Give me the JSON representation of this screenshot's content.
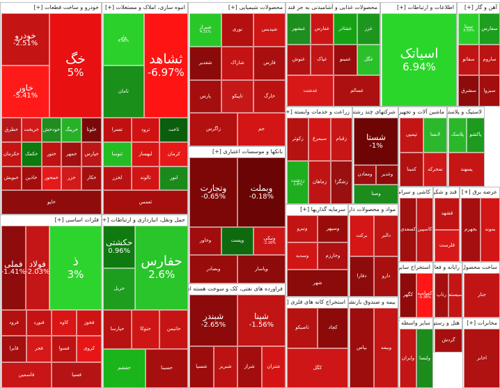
{
  "colors": {
    "up_strong": "#22cc22",
    "up_medium": "#11a011",
    "up_dark": "#0b6b0b",
    "down_strong": "#ff0000",
    "down_medium": "#d11616",
    "down_dark": "#7a0000",
    "neutral_dark": "#5a0000"
  },
  "sectors": [
    {
      "id": "s1",
      "title": "خودرو و ساخت قطعات [+]",
      "cells": [
        {
          "sym": "خگ",
          "chg": "5%",
          "c": "#e81010",
          "sz": "big"
        },
        {
          "sym": "خودرو",
          "chg": "-2.51%",
          "c": "#c51414",
          "sz": "med"
        },
        {
          "sym": "خاور",
          "chg": "-5.41%",
          "c": "#ff1a1a",
          "sz": "med"
        },
        {
          "sym": "خلوتا",
          "chg": "",
          "c": "#7a0a0a",
          "sz": "sml"
        },
        {
          "sym": "خرینگ",
          "chg": "",
          "c": "#27b127",
          "sz": "sml"
        },
        {
          "sym": "خودخش",
          "chg": "",
          "c": "#1f8e1f",
          "sz": "sml"
        },
        {
          "sym": "خریخت",
          "chg": "",
          "c": "#d21a1a",
          "sz": "sml"
        },
        {
          "sym": "خطرق",
          "chg": "",
          "c": "#b51818",
          "sz": "sml"
        },
        {
          "sym": "خپارس",
          "chg": "",
          "c": "#bd1616",
          "sz": "sml"
        },
        {
          "sym": "خمهر",
          "chg": "",
          "c": "#a21010",
          "sz": "sml"
        },
        {
          "sym": "ختور",
          "chg": "",
          "c": "#c01212",
          "sz": "sml"
        },
        {
          "sym": "خکمک",
          "chg": "",
          "c": "#0d7a0d",
          "sz": "sml"
        },
        {
          "sym": "خکرمان",
          "chg": "",
          "c": "#c41414",
          "sz": "sml"
        },
        {
          "sym": "خکار",
          "chg": "",
          "c": "#a40f0f",
          "sz": "sml"
        },
        {
          "sym": "خزر",
          "chg": "",
          "c": "#d11a1a",
          "sz": "sml"
        },
        {
          "sym": "خمحور",
          "chg": "",
          "c": "#e51919",
          "sz": "sml"
        },
        {
          "sym": "خاذین",
          "chg": "",
          "c": "#a30d0d",
          "sz": "sml"
        },
        {
          "sym": "خبویش",
          "chg": "",
          "c": "#b51212",
          "sz": "sml"
        },
        {
          "sym": "خاپو",
          "chg": "",
          "c": "#8f0c0c",
          "sz": "sml"
        }
      ]
    },
    {
      "id": "s2",
      "title": "فلزات اساسی [+]",
      "cells": [
        {
          "sym": "ذ",
          "chg": "3%",
          "c": "#2ed42e",
          "sz": "big"
        },
        {
          "sym": "فولاد",
          "chg": "-2.03%",
          "c": "#c41616",
          "sz": "med"
        },
        {
          "sym": "فملی",
          "chg": "-1.41%",
          "c": "#8f0c0c",
          "sz": "med"
        },
        {
          "sym": "فخوز",
          "chg": "",
          "c": "#cf1212",
          "sz": "sml"
        },
        {
          "sym": "کاوه",
          "chg": "",
          "c": "#d91515",
          "sz": "sml"
        },
        {
          "sym": "فنورد",
          "chg": "",
          "c": "#c51212",
          "sz": "sml"
        },
        {
          "sym": "فرود",
          "chg": "",
          "c": "#b31010",
          "sz": "sml"
        },
        {
          "sym": "کروی",
          "chg": "",
          "c": "#e71616",
          "sz": "sml"
        },
        {
          "sym": "فسوا",
          "chg": "",
          "c": "#bf1313",
          "sz": "sml"
        },
        {
          "sym": "فجر",
          "chg": "",
          "c": "#d61818",
          "sz": "sml"
        },
        {
          "sym": "فایرا",
          "chg": "",
          "c": "#a50f0f",
          "sz": "sml"
        },
        {
          "sym": "فسپا",
          "chg": "",
          "c": "#b61414",
          "sz": "sml"
        },
        {
          "sym": "فاسمین",
          "chg": "",
          "c": "#c81515",
          "sz": "sml"
        }
      ]
    },
    {
      "id": "s3",
      "title": "انبوه سازی، املاک و مستغلات [+]",
      "cells": [
        {
          "sym": "ثشاهد",
          "chg": "-6.97%",
          "c": "#ff1414",
          "sz": "big"
        },
        {
          "sym": "وثر",
          "chg": "4.98%",
          "c": "#2bd02b",
          "sz": "sml"
        },
        {
          "sym": "ثامان",
          "chg": "",
          "c": "#1a8f1a",
          "sz": "sml"
        },
        {
          "sym": "ثاخت",
          "chg": "",
          "c": "#0b5e0b",
          "sz": "sml"
        },
        {
          "sym": "ثرود",
          "chg": "",
          "c": "#d01212",
          "sz": "sml"
        },
        {
          "sym": "ثعمرا",
          "chg": "",
          "c": "#c01010",
          "sz": "sml"
        },
        {
          "sym": "کرمان",
          "chg": "",
          "c": "#e61818",
          "sz": "sml"
        },
        {
          "sym": "لبهساز",
          "chg": "",
          "c": "#d91414",
          "sz": "sml"
        },
        {
          "sym": "ثنوسا",
          "chg": "",
          "c": "#24bd24",
          "sz": "sml"
        },
        {
          "sym": "لنور",
          "chg": "",
          "c": "#1b8a1b",
          "sz": "sml"
        },
        {
          "sym": "ثالوند",
          "chg": "",
          "c": "#d11515",
          "sz": "sml"
        },
        {
          "sym": "لخزر",
          "chg": "",
          "c": "#ba1212",
          "sz": "sml"
        },
        {
          "sym": "ثعمس",
          "chg": "",
          "c": "#a60e0e",
          "sz": "sml"
        }
      ]
    },
    {
      "id": "s4",
      "title": "حمل ونقل، انبارداری و ارتباطات [+]",
      "cells": [
        {
          "sym": "حفارس",
          "chg": "2.6%",
          "c": "#2ac52a",
          "sz": "big"
        },
        {
          "sym": "حکشتی",
          "chg": "0.96%",
          "c": "#0f7a0f",
          "sz": "med"
        },
        {
          "sym": "حریل",
          "chg": "",
          "c": "#1e9e1e",
          "sz": "sml"
        },
        {
          "sym": "حاتیمن",
          "chg": "",
          "c": "#c61414",
          "sz": "sml"
        },
        {
          "sym": "حتوکا",
          "chg": "",
          "c": "#cf1616",
          "sz": "sml"
        },
        {
          "sym": "حپارسا",
          "chg": "",
          "c": "#b91212",
          "sz": "sml"
        },
        {
          "sym": "حسینا",
          "chg": "",
          "c": "#a70f0f",
          "sz": "sml"
        },
        {
          "sym": "حقشم",
          "chg": "",
          "c": "#1ab51a",
          "sz": "sml"
        }
      ]
    },
    {
      "id": "s5",
      "title": "محصولات شیمیایی [+]",
      "cells": [
        {
          "sym": "شپدیس",
          "chg": "",
          "c": "#d01515",
          "sz": "sml"
        },
        {
          "sym": "نوری",
          "chg": "",
          "c": "#b41010",
          "sz": "sml"
        },
        {
          "sym": "شیراز",
          "chg": "4.31%",
          "c": "#29c829",
          "sz": "sml"
        },
        {
          "sym": "فارس",
          "chg": "",
          "c": "#a90f0f",
          "sz": "sml"
        },
        {
          "sym": "شاراک",
          "chg": "",
          "c": "#c31313",
          "sz": "sml"
        },
        {
          "sym": "شغدیر",
          "chg": "",
          "c": "#8b0b0b",
          "sz": "sml"
        },
        {
          "sym": "خارگ",
          "chg": "",
          "c": "#bd1212",
          "sz": "sml"
        },
        {
          "sym": "تاپیکو",
          "chg": "",
          "c": "#c61818",
          "sz": "sml"
        },
        {
          "sym": "پارس",
          "chg": "",
          "c": "#a50e0e",
          "sz": "sml"
        },
        {
          "sym": "جم",
          "chg": "",
          "c": "#d31515",
          "sz": "sml"
        },
        {
          "sym": "زاگرس",
          "chg": "",
          "c": "#b31010",
          "sz": "sml"
        }
      ]
    },
    {
      "id": "s6",
      "title": "بانکها و موسسات اعتباری [+]",
      "cells": [
        {
          "sym": "وبملت",
          "chg": "-0.18%",
          "c": "#6b0404",
          "sz": "med"
        },
        {
          "sym": "وتجارت",
          "chg": "-0.65%",
          "c": "#7d0707",
          "sz": "med"
        },
        {
          "sym": "ونیکی",
          "chg": "-2.16%",
          "c": "#cc1616",
          "sz": "sml"
        },
        {
          "sym": "وپست",
          "chg": "",
          "c": "#0f6a0f",
          "sz": "sml"
        },
        {
          "sym": "وخاور",
          "chg": "",
          "c": "#a10d0d",
          "sz": "sml"
        },
        {
          "sym": "وپاسار",
          "chg": "",
          "c": "#8e0b0b",
          "sz": "sml"
        },
        {
          "sym": "وبصادر",
          "chg": "",
          "c": "#990c0c",
          "sz": "sml"
        }
      ]
    },
    {
      "id": "s7",
      "title": "فراورده های نفتی، کک و سوخت هسته ای [+]",
      "cells": [
        {
          "sym": "شپنا",
          "chg": "-1.56%",
          "c": "#c11414",
          "sz": "med"
        },
        {
          "sym": "شبندر",
          "chg": "-2.65%",
          "c": "#8c0a0a",
          "sz": "med"
        },
        {
          "sym": "شتران",
          "chg": "",
          "c": "#d41414",
          "sz": "sml"
        },
        {
          "sym": "شراز",
          "chg": "",
          "c": "#a20e0e",
          "sz": "sml"
        },
        {
          "sym": "شبریز",
          "chg": "",
          "c": "#bd1212",
          "sz": "sml"
        },
        {
          "sym": "شسپا",
          "chg": "",
          "c": "#9c0c0c",
          "sz": "sml"
        }
      ]
    },
    {
      "id": "s8",
      "title": "محصولات غذایی و آشامیدنی به جز قند و شکر [+]",
      "cells": [
        {
          "sym": "غزر",
          "chg": "",
          "c": "#1d961d",
          "sz": "sml"
        },
        {
          "sym": "غشاذر",
          "chg": "",
          "c": "#15a315",
          "sz": "sml"
        },
        {
          "sym": "غفارس",
          "chg": "",
          "c": "#cc1616",
          "sz": "sml"
        },
        {
          "sym": "غبشهر",
          "chg": "",
          "c": "#1e8e1e",
          "sz": "sml"
        },
        {
          "sym": "غگل",
          "chg": "",
          "c": "#2ac02a",
          "sz": "sml"
        },
        {
          "sym": "غمینو",
          "chg": "",
          "c": "#9a0d0d",
          "sz": "sml"
        },
        {
          "sym": "غپاک",
          "chg": "",
          "c": "#c21515",
          "sz": "sml"
        },
        {
          "sym": "غنوش",
          "chg": "",
          "c": "#b41212",
          "sz": "sml"
        },
        {
          "sym": "غسالم",
          "chg": "",
          "c": "#ad1010",
          "sz": "sml"
        },
        {
          "sym": "غدشت",
          "chg": "",
          "c": "#d61818",
          "sz": "sml"
        }
      ]
    },
    {
      "id": "s9",
      "title": "اطلاعات و ارتباطات [+]",
      "cells": [
        {
          "sym": "اسیاتک",
          "chg": "6.94%",
          "c": "#2bd62b",
          "sz": "big"
        }
      ]
    },
    {
      "id": "s10",
      "title": "آهن و گاز [+]",
      "cells": [
        {
          "sym": "سفارس",
          "chg": "",
          "c": "#1e9e1e",
          "sz": "sml"
        },
        {
          "sym": "سیتا",
          "chg": "3.59%",
          "c": "#2ad02a",
          "sz": "sml"
        },
        {
          "sym": "ساروم",
          "chg": "",
          "c": "#b91313",
          "sz": "sml"
        },
        {
          "sym": "سفانو",
          "chg": "",
          "c": "#c11515",
          "sz": "sml"
        },
        {
          "sym": "سبزوا",
          "chg": "",
          "c": "#a20e0e",
          "sz": "sml"
        },
        {
          "sym": "سشرق",
          "chg": "",
          "c": "#8d0b0b",
          "sz": "sml"
        }
      ]
    },
    {
      "id": "s11",
      "title": "زراعت و خدمات وابسته [+]",
      "cells": [
        {
          "sym": "زقیام",
          "chg": "",
          "c": "#c71616",
          "sz": "sml"
        },
        {
          "sym": "سیمرغ",
          "chg": "",
          "c": "#d41515",
          "sz": "sml"
        },
        {
          "sym": "زکوثر",
          "chg": "",
          "c": "#b51212",
          "sz": "sml"
        },
        {
          "sym": "زشگزا",
          "chg": "",
          "c": "#981010",
          "sz": "sml"
        },
        {
          "sym": "زماهان",
          "chg": "",
          "c": "#bf1414",
          "sz": "sml"
        },
        {
          "sym": "زدشت",
          "chg": "1.8%",
          "c": "#1fae1f",
          "sz": "sml"
        }
      ]
    },
    {
      "id": "s12",
      "title": "شرکتهای چند رشته ای [+]",
      "cells": [
        {
          "sym": "شستا",
          "chg": "-1%",
          "c": "#6e0404",
          "sz": "med"
        },
        {
          "sym": "وغدیر",
          "chg": "",
          "c": "#8f0a0a",
          "sz": "sml"
        },
        {
          "sym": "ومعادن",
          "chg": "",
          "c": "#9d0e0e",
          "sz": "sml"
        },
        {
          "sym": "وصنا",
          "chg": "",
          "c": "#1c8c1c",
          "sz": "sml"
        }
      ]
    },
    {
      "id": "s13",
      "title": "ماشین آلات و تجهیزات [+]",
      "cells": [
        {
          "sym": "لابسا",
          "chg": "",
          "c": "#2cb82c",
          "sz": "sml"
        },
        {
          "sym": "تپمپی",
          "chg": "",
          "c": "#c41515",
          "sz": "sml"
        },
        {
          "sym": "تمحرکه",
          "chg": "",
          "c": "#d11818",
          "sz": "sml"
        },
        {
          "sym": "کمینا",
          "chg": "",
          "c": "#b21111",
          "sz": "sml"
        }
      ]
    },
    {
      "id": "s14",
      "title": "لاستیک و پلاستیک [+]",
      "cells": [
        {
          "sym": "پاکشو",
          "chg": "",
          "c": "#1e9a1e",
          "sz": "sml"
        },
        {
          "sym": "پلاسک",
          "chg": "",
          "c": "#2ab82a",
          "sz": "sml"
        },
        {
          "sym": "پسهند",
          "chg": "",
          "c": "#c61515",
          "sz": "sml"
        }
      ]
    },
    {
      "id": "s15",
      "title": "سرمایه گذاریها [+]",
      "cells": [
        {
          "sym": "وسپهر",
          "chg": "",
          "c": "#9a0c0c",
          "sz": "sml"
        },
        {
          "sym": "ونیرو",
          "chg": "",
          "c": "#c31414",
          "sz": "sml"
        },
        {
          "sym": "وخارزم",
          "chg": "",
          "c": "#ae1111",
          "sz": "sml"
        },
        {
          "sym": "وسدید",
          "chg": "",
          "c": "#d11616",
          "sz": "sml"
        },
        {
          "sym": "شهر",
          "chg": "",
          "c": "#8b0a0a",
          "sz": "sml"
        }
      ]
    },
    {
      "id": "s16",
      "title": "مواد و محصولات دارویی [+]",
      "cells": [
        {
          "sym": "دالبر",
          "chg": "",
          "c": "#c11414",
          "sz": "sml"
        },
        {
          "sym": "برکت",
          "chg": "",
          "c": "#d41616",
          "sz": "sml"
        },
        {
          "sym": "دارو",
          "chg": "",
          "c": "#a80f0f",
          "sz": "sml"
        },
        {
          "sym": "دفارا",
          "chg": "",
          "c": "#8e0b0b",
          "sz": "sml"
        }
      ]
    },
    {
      "id": "s17",
      "title": "کاشی و سرامیک [+]",
      "cells": [
        {
          "sym": "کاسپین",
          "chg": "",
          "c": "#c41414",
          "sz": "sml"
        },
        {
          "sym": "کسعدی",
          "chg": "",
          "c": "#a10e0e",
          "sz": "sml"
        }
      ]
    },
    {
      "id": "s18",
      "title": "قند و شکر [+]",
      "cells": [
        {
          "sym": "قشهد",
          "chg": "",
          "c": "#c01414",
          "sz": "sml"
        },
        {
          "sym": "قلرست",
          "chg": "",
          "c": "#d81818",
          "sz": "sml"
        }
      ]
    },
    {
      "id": "s19",
      "title": "عرضه برق [+]",
      "cells": [
        {
          "sym": "بموند",
          "chg": "",
          "c": "#d21515",
          "sz": "sml"
        },
        {
          "sym": "بجهرم",
          "chg": "",
          "c": "#a60f0f",
          "sz": "sml"
        }
      ]
    },
    {
      "id": "s20",
      "title": "استخراج سایر معادن [+]",
      "cells": [
        {
          "sym": "کمیاسه",
          "chg": "-5.38%",
          "c": "#ff1616",
          "sz": "sml"
        },
        {
          "sym": "کگهر",
          "chg": "",
          "c": "#8f0b0b",
          "sz": "sml"
        }
      ]
    },
    {
      "id": "s21",
      "title": "رایانه و فعالیت [+]",
      "cells": [
        {
          "sym": "سیستم",
          "chg": "",
          "c": "#c41515",
          "sz": "sml"
        },
        {
          "sym": "رتاپ",
          "chg": "",
          "c": "#a30f0f",
          "sz": "sml"
        }
      ]
    },
    {
      "id": "s22",
      "title": "استخراج کانه های فلزی [+]",
      "cells": [
        {
          "sym": "کچاد",
          "chg": "",
          "c": "#8c0a0a",
          "sz": "sml"
        },
        {
          "sym": "تاصیکو",
          "chg": "",
          "c": "#b61212",
          "sz": "sml"
        },
        {
          "sym": "کگل",
          "chg": "",
          "c": "#cf1616",
          "sz": "sml"
        }
      ]
    },
    {
      "id": "s23",
      "title": "بیمه و صندوق بازنشستگی [+]",
      "cells": [
        {
          "sym": "وبیمه",
          "chg": "",
          "c": "#c61515",
          "sz": "sml"
        },
        {
          "sym": "بپاس",
          "chg": "",
          "c": "#9e0d0d",
          "sz": "sml"
        }
      ]
    },
    {
      "id": "s24",
      "title": "سایر واسطه گری [+]",
      "cells": [
        {
          "sym": "ولیسا",
          "chg": "",
          "c": "#1c8c1c",
          "sz": "sml"
        },
        {
          "sym": "وایران",
          "chg": "",
          "c": "#c31515",
          "sz": "sml"
        }
      ]
    },
    {
      "id": "s25",
      "title": "هتل و رستوران [+]",
      "cells": [
        {
          "sym": "گردش",
          "chg": "",
          "c": "#a70f0f",
          "sz": "sml"
        }
      ]
    },
    {
      "id": "s26",
      "title": "ساخت محصول [+]",
      "cells": [
        {
          "sym": "جنار",
          "chg": "",
          "c": "#c11414",
          "sz": "sml"
        }
      ]
    },
    {
      "id": "s27",
      "title": "مخابرات [+]",
      "cells": [
        {
          "sym": "اخابر",
          "chg": "",
          "c": "#b01111",
          "sz": "sml"
        }
      ]
    }
  ]
}
